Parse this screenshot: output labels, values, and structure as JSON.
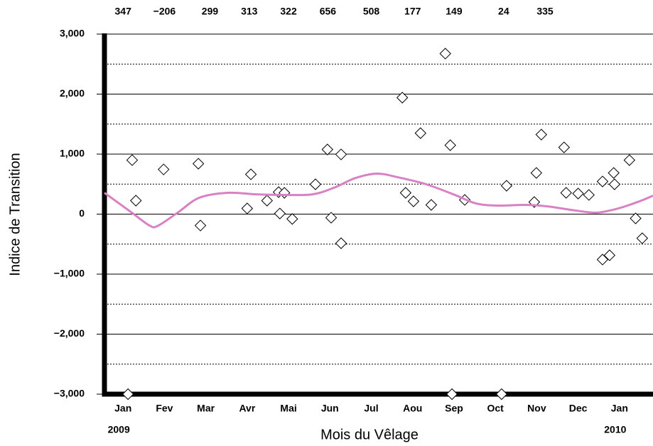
{
  "chart_data": {
    "type": "scatter",
    "xlabel": "Mois du Vêlage",
    "ylabel": "Indice de Transition",
    "xlim": [
      -0.45,
      12.81
    ],
    "ylim": [
      -3000,
      3000
    ],
    "xticks": [
      {
        "value": 0,
        "label": "Jan"
      },
      {
        "value": 1,
        "label": "Fev"
      },
      {
        "value": 2,
        "label": "Mar"
      },
      {
        "value": 3,
        "label": "Avr"
      },
      {
        "value": 4,
        "label": "Mai"
      },
      {
        "value": 5,
        "label": "Jun"
      },
      {
        "value": 6,
        "label": "Jul"
      },
      {
        "value": 7,
        "label": "Aou"
      },
      {
        "value": 8,
        "label": "Sep"
      },
      {
        "value": 9,
        "label": "Oct"
      },
      {
        "value": 10,
        "label": "Nov"
      },
      {
        "value": 11,
        "label": "Dec"
      },
      {
        "value": 12,
        "label": "Jan"
      }
    ],
    "year_labels": [
      "2009",
      "2010"
    ],
    "yticks": [
      {
        "value": 3000,
        "label": "3,000"
      },
      {
        "value": 2000,
        "label": "2,000"
      },
      {
        "value": 1000,
        "label": "1,000"
      },
      0,
      {
        "value": -1000,
        "label": "−1,000"
      },
      {
        "value": -2000,
        "label": "−2,000"
      },
      {
        "value": -3000,
        "label": "−3,000"
      }
    ],
    "y_minor_ticks": [
      2500,
      1500,
      500,
      -500,
      -1500,
      -2500
    ],
    "grid": true,
    "monthly_means": {
      "x": [
        0,
        1,
        2.1,
        3.05,
        4,
        4.95,
        6,
        7,
        8,
        9.2,
        10.2
      ],
      "values": [
        347,
        -206,
        299,
        313,
        322,
        656,
        508,
        177,
        149,
        24,
        335
      ],
      "value_labels": [
        "347",
        "−206",
        "299",
        "313",
        "322",
        "656",
        "508",
        "177",
        "149",
        "24",
        "335"
      ]
    },
    "series": [
      {
        "type": "scatter",
        "color": "#000000",
        "x": [
          0.12,
          0.22,
          0.31,
          0.98,
          1.82,
          1.87,
          3.0,
          3.09,
          3.48,
          3.76,
          3.79,
          3.9,
          4.09,
          4.65,
          4.94,
          5.03,
          5.27,
          5.27,
          6.75,
          6.83,
          7.02,
          7.19,
          7.45,
          7.79,
          7.91,
          7.95,
          8.26,
          9.15,
          9.27,
          9.94,
          9.99,
          10.11,
          10.66,
          10.71,
          11.0,
          11.26,
          11.59,
          11.59,
          11.76,
          11.86,
          11.88,
          12.24,
          12.39,
          12.55
        ],
        "values": [
          -3000,
          900,
          225,
          745,
          840,
          -190,
          95,
          663,
          225,
          367,
          10,
          355,
          -80,
          497,
          1077,
          -60,
          995,
          -485,
          1941,
          355,
          213,
          1349,
          154,
          2675,
          1148,
          -3000,
          237,
          -3000,
          473,
          201,
          686,
          1325,
          1112,
          355,
          343,
          320,
          544,
          -757,
          -686,
          686,
          497,
          899,
          -71,
          -402
        ]
      },
      {
        "type": "line",
        "color": "#d881c4",
        "x": [
          -0.45,
          0.21,
          0.64,
          0.84,
          1.32,
          1.84,
          2.52,
          3.21,
          3.9,
          4.58,
          5.1,
          5.61,
          6.13,
          6.64,
          7.33,
          8.02,
          8.53,
          9.05,
          9.73,
          10.25,
          10.94,
          11.45,
          11.97,
          12.48,
          12.81
        ],
        "values": [
          355,
          25,
          -190,
          -195,
          25,
          272,
          355,
          330,
          320,
          330,
          440,
          600,
          675,
          615,
          497,
          320,
          178,
          142,
          154,
          130,
          60,
          25,
          95,
          213,
          308
        ]
      }
    ]
  }
}
